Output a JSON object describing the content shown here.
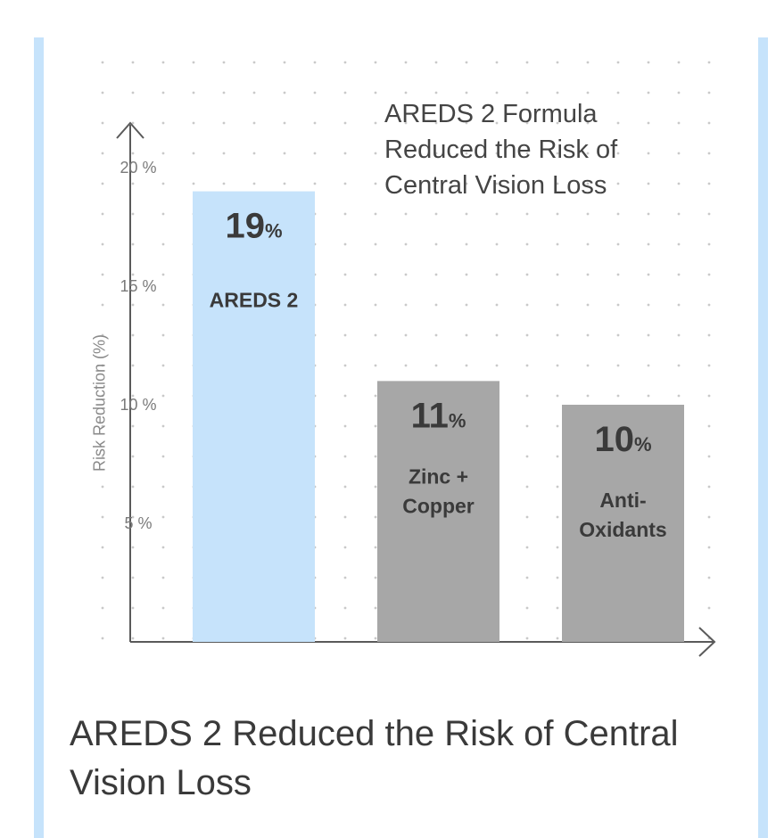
{
  "page": {
    "caption": "AREDS 2 Reduced the Risk of Central Vision Loss",
    "stripe_color": "#c6e3fb"
  },
  "chart_data": {
    "type": "bar",
    "title": "AREDS 2 Formula Reduced the Risk of Central Vision Loss",
    "ylabel": "Risk Reduction (%)",
    "xlabel": "",
    "ylim": [
      0,
      20
    ],
    "yticks": [
      5,
      10,
      15,
      20
    ],
    "ytick_labels": [
      "5 %",
      "10 %",
      "15 %",
      "20 %"
    ],
    "grid": "dotted",
    "bars": [
      {
        "category": "AREDS 2",
        "label_lines": [
          "AREDS 2"
        ],
        "value": 19,
        "value_text": "19",
        "unit": "%",
        "color": "#c6e3fb"
      },
      {
        "category": "Zinc + Copper",
        "label_lines": [
          "Zinc +",
          "Copper"
        ],
        "value": 11,
        "value_text": "11",
        "unit": "%",
        "color": "#a7a7a7"
      },
      {
        "category": "Anti-Oxidants",
        "label_lines": [
          "Anti-",
          "Oxidants"
        ],
        "value": 10,
        "value_text": "10",
        "unit": "%",
        "color": "#a7a7a7"
      }
    ]
  }
}
